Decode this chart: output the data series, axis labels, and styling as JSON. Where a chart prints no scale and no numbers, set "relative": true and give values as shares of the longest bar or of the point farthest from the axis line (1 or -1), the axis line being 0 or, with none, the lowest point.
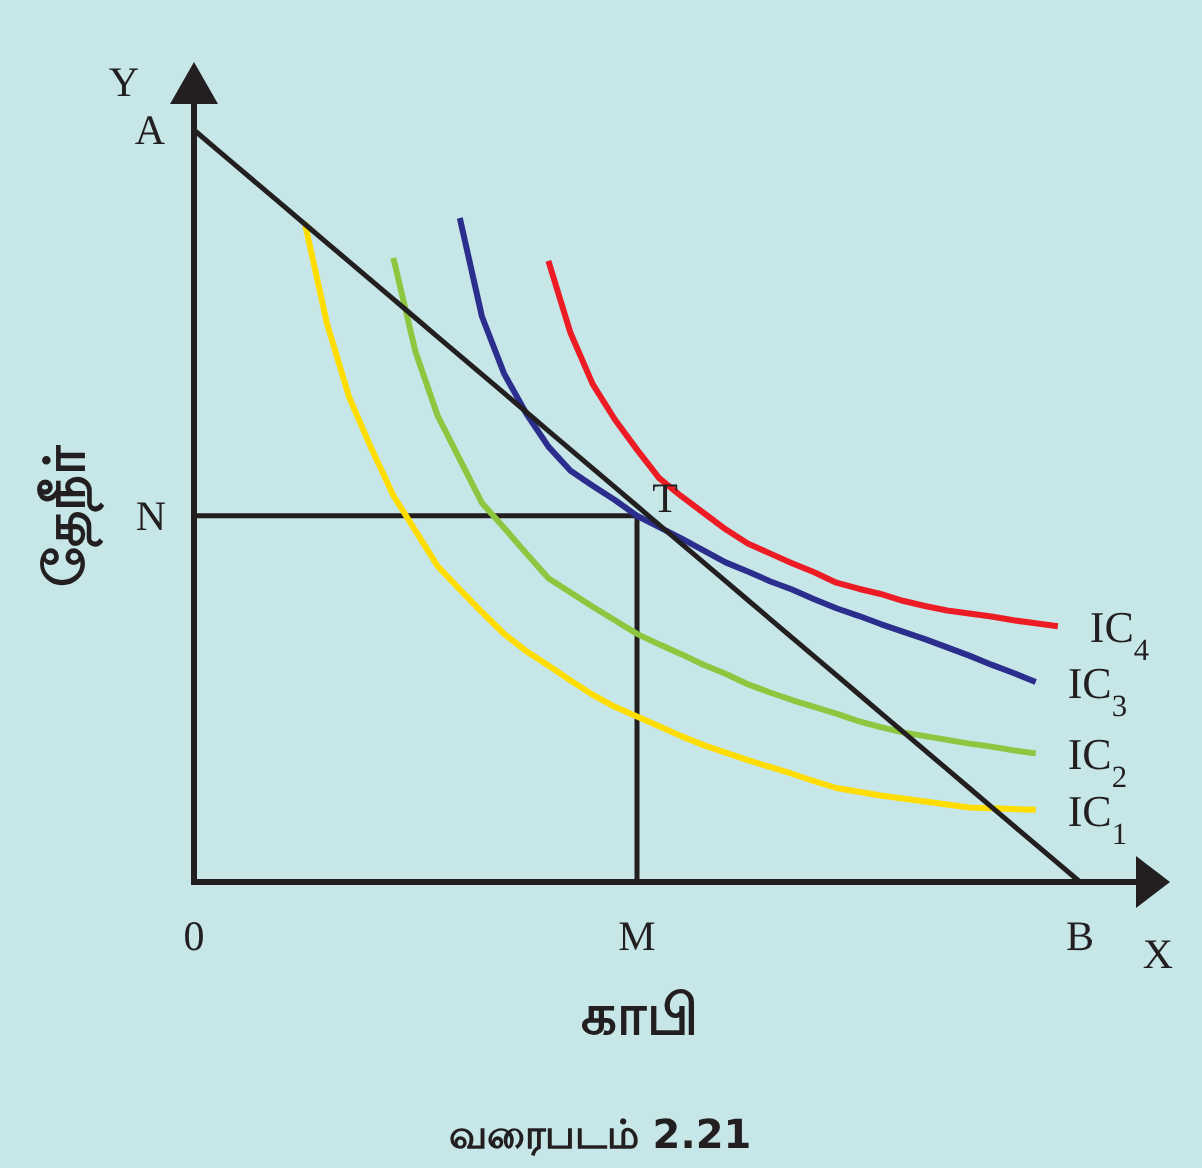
{
  "chart_data": {
    "type": "line",
    "relative": true,
    "xlabel": "காபி",
    "ylabel": "தேநீர்",
    "categories": [
      "0",
      null,
      null,
      null,
      null,
      null,
      null,
      null,
      null,
      null,
      null,
      null,
      null,
      null,
      null,
      null,
      null,
      null,
      null,
      null,
      "M",
      null,
      null,
      null,
      null,
      null,
      null,
      null,
      null,
      null,
      null,
      null,
      null,
      null,
      null,
      null,
      null,
      null,
      null,
      null,
      "B"
    ],
    "series": [
      {
        "name": "IC$_{1}$",
        "color": "#ffdd00",
        "values": [
          null,
          null,
          null,
          null,
          null,
          0.877,
          0.743,
          0.645,
          0.577,
          0.514,
          0.467,
          0.42,
          0.389,
          0.359,
          0.33,
          0.307,
          0.288,
          0.268,
          0.249,
          0.233,
          0.22,
          0.207,
          0.194,
          0.182,
          0.172,
          0.162,
          0.153,
          0.144,
          0.134,
          0.125,
          0.12,
          0.115,
          0.111,
          0.107,
          0.103,
          0.099,
          0.098,
          0.097,
          0.096,
          null,
          null
        ]
      },
      {
        "name": "IC$_{2}$",
        "color": "#8dc63f",
        "values": [
          null,
          null,
          null,
          null,
          null,
          null,
          null,
          null,
          null,
          0.83,
          0.705,
          0.62,
          0.562,
          0.504,
          0.471,
          0.437,
          0.404,
          0.385,
          0.366,
          0.348,
          0.33,
          0.316,
          0.303,
          0.289,
          0.277,
          0.263,
          0.252,
          0.242,
          0.233,
          0.224,
          0.214,
          0.206,
          0.199,
          0.194,
          0.189,
          0.184,
          0.18,
          0.175,
          0.171,
          null,
          null
        ]
      },
      {
        "name": "IC$_{3}$",
        "color": "#2b2e8c",
        "values": [
          null,
          null,
          null,
          null,
          null,
          null,
          null,
          null,
          null,
          null,
          null,
          null,
          0.883,
          0.752,
          0.676,
          0.623,
          0.579,
          0.547,
          0.527,
          0.508,
          0.487,
          0.472,
          0.457,
          0.441,
          0.425,
          0.413,
          0.4,
          0.389,
          0.376,
          0.364,
          0.354,
          0.343,
          0.333,
          0.323,
          0.312,
          0.301,
          0.289,
          0.278,
          0.266,
          null,
          null
        ]
      },
      {
        "name": "IC$_{4}$",
        "color": "#ed1c24",
        "values": [
          null,
          null,
          null,
          null,
          null,
          null,
          null,
          null,
          null,
          null,
          null,
          null,
          null,
          null,
          null,
          null,
          0.826,
          0.73,
          0.662,
          0.615,
          0.575,
          0.537,
          0.513,
          0.491,
          0.469,
          0.45,
          0.437,
          0.424,
          0.412,
          0.398,
          0.39,
          0.383,
          0.374,
          0.367,
          0.361,
          0.357,
          0.353,
          0.348,
          0.344,
          0.34,
          null
        ]
      },
      {
        "color": "#231f20",
        "values": [
          1,
          0.975,
          0.95,
          0.925,
          0.9,
          0.875,
          0.85,
          0.825,
          0.8,
          0.775,
          0.75,
          0.725,
          0.7,
          0.675,
          0.65,
          0.625,
          0.6,
          0.575,
          0.55,
          0.525,
          0.5,
          0.475,
          0.45,
          0.425,
          0.4,
          0.375,
          0.35,
          0.325,
          0.3,
          0.275,
          0.25,
          0.225,
          0.2,
          0.175,
          0.15,
          0.125,
          0.1,
          0.075,
          0.05,
          0.025,
          0
        ]
      }
    ],
    "ref_lines": [
      {
        "axis": "y",
        "value": 0.487,
        "label": "N",
        "color": "#231f20"
      },
      {
        "axis": "x",
        "value": "M",
        "color": "#231f20"
      }
    ],
    "annotations": [
      {
        "text": "A",
        "x": "0",
        "y": 1
      },
      {
        "text": "T",
        "x": "M",
        "y": 0.487
      },
      "Y",
      "X",
      "வரைபடம் 2.21"
    ]
  }
}
